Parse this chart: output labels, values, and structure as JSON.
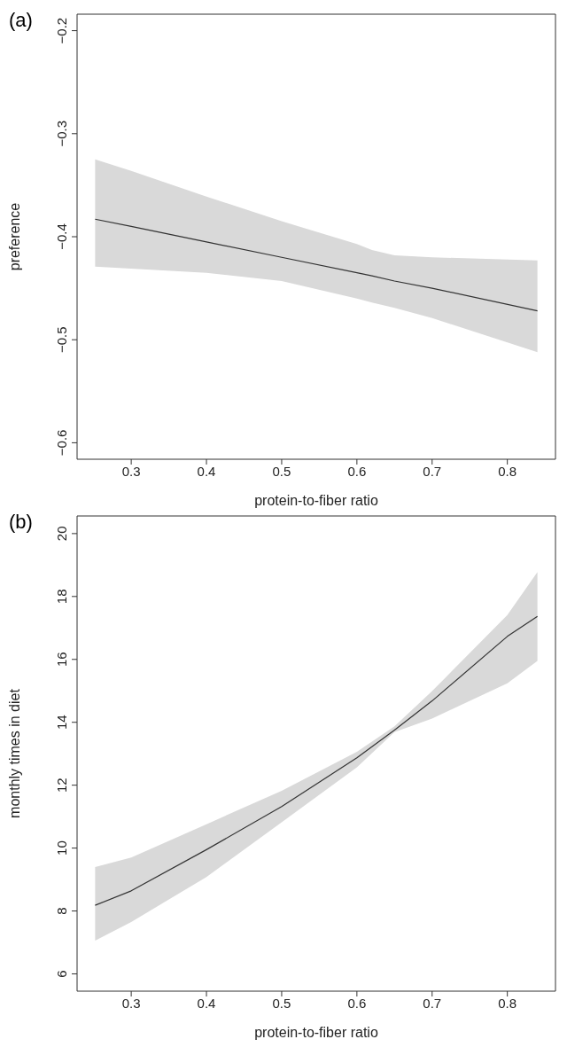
{
  "chart_data": [
    {
      "type": "line",
      "title": "(a)",
      "xlabel": "protein-to-fiber ratio",
      "ylabel": "preference",
      "xlim": [
        0.228,
        0.864
      ],
      "xticks": [
        0.3,
        0.4,
        0.5,
        0.6,
        0.7,
        0.8
      ],
      "ylim": [
        -0.616,
        -0.184
      ],
      "yticks": [
        -0.6,
        -0.5,
        -0.4,
        -0.3,
        -0.2
      ],
      "marker": "none",
      "line_style": "solid",
      "series": [
        {
          "color": "#333333",
          "x": [
            0.252,
            0.3,
            0.4,
            0.5,
            0.6,
            0.62,
            0.65,
            0.7,
            0.84
          ],
          "values": [
            -0.383,
            -0.39,
            -0.405,
            -0.42,
            -0.435,
            -0.438,
            -0.443,
            -0.45,
            -0.472
          ],
          "lower": [
            -0.429,
            -0.431,
            -0.435,
            -0.443,
            -0.46,
            -0.464,
            -0.469,
            -0.479,
            -0.512
          ],
          "upper": [
            -0.325,
            -0.336,
            -0.361,
            -0.385,
            -0.407,
            -0.413,
            -0.418,
            -0.42,
            -0.423
          ]
        }
      ]
    },
    {
      "type": "line",
      "title": "(b)",
      "xlabel": "protein-to-fiber ratio",
      "ylabel": "monthly times in diet",
      "xlim": [
        0.228,
        0.864
      ],
      "xticks": [
        0.3,
        0.4,
        0.5,
        0.6,
        0.7,
        0.8
      ],
      "ylim": [
        5.45,
        20.56
      ],
      "yticks": [
        6,
        8,
        10,
        12,
        14,
        16,
        18,
        20
      ],
      "marker": "none",
      "line_style": "solid",
      "series": [
        {
          "color": "#333333",
          "x": [
            0.252,
            0.3,
            0.4,
            0.5,
            0.6,
            0.65,
            0.7,
            0.8,
            0.84
          ],
          "values": [
            8.18,
            8.64,
            9.95,
            11.32,
            12.87,
            13.75,
            14.68,
            16.73,
            17.37
          ],
          "lower": [
            7.06,
            7.65,
            9.08,
            10.82,
            12.57,
            13.69,
            14.12,
            15.24,
            15.95
          ],
          "upper": [
            9.4,
            9.7,
            10.76,
            11.82,
            13.06,
            13.87,
            14.99,
            17.41,
            18.78
          ]
        }
      ]
    }
  ]
}
